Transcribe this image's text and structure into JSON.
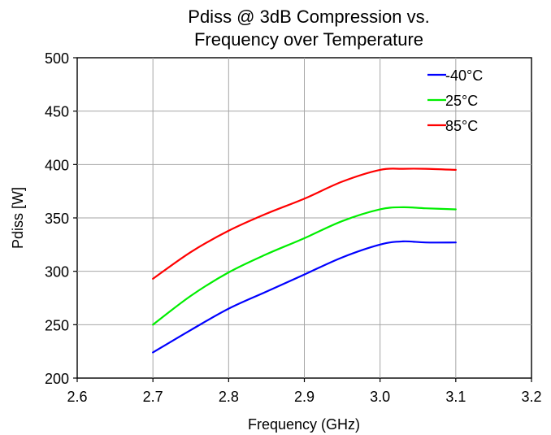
{
  "chart_data": {
    "type": "line",
    "title_lines": [
      "Pdiss @ 3dB Compression vs.",
      "Frequency over Temperature"
    ],
    "xlabel": "Frequency (GHz)",
    "ylabel": "Pdiss [W]",
    "xlim": [
      2.6,
      3.2
    ],
    "ylim": [
      200,
      500
    ],
    "xticks": [
      2.6,
      2.7,
      2.8,
      2.9,
      3.0,
      3.1,
      3.2
    ],
    "xtick_labels": [
      "2.6",
      "2.7",
      "2.8",
      "2.9",
      "3.0",
      "3.1",
      "3.2"
    ],
    "yticks": [
      200,
      250,
      300,
      350,
      400,
      450,
      500
    ],
    "ytick_labels": [
      "200",
      "250",
      "300",
      "350",
      "400",
      "450",
      "500"
    ],
    "grid": true,
    "legend_position": "top-right",
    "series": [
      {
        "name": "-40°C",
        "color": "#0000ff",
        "x": [
          2.7,
          2.75,
          2.8,
          2.85,
          2.9,
          2.95,
          3.0,
          3.03,
          3.06,
          3.1
        ],
        "y": [
          224,
          245,
          265,
          281,
          297,
          313,
          325,
          328,
          327,
          327
        ]
      },
      {
        "name": "25°C",
        "color": "#00ee00",
        "x": [
          2.7,
          2.75,
          2.8,
          2.85,
          2.9,
          2.95,
          3.0,
          3.03,
          3.06,
          3.1
        ],
        "y": [
          250,
          277,
          299,
          316,
          331,
          347,
          358,
          360,
          359,
          358
        ]
      },
      {
        "name": "85°C",
        "color": "#ff0000",
        "x": [
          2.7,
          2.75,
          2.8,
          2.85,
          2.9,
          2.95,
          3.0,
          3.03,
          3.06,
          3.1
        ],
        "y": [
          293,
          318,
          338,
          354,
          368,
          384,
          395,
          396,
          396,
          395
        ]
      }
    ]
  }
}
